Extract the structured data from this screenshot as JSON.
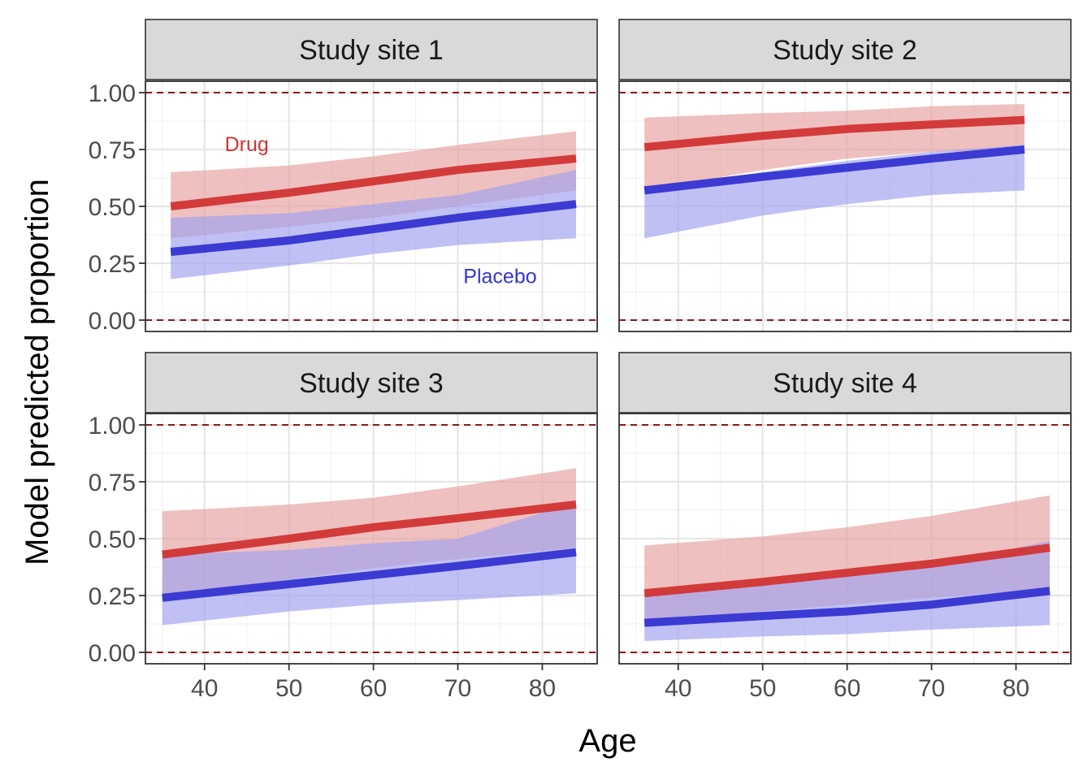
{
  "chart_data": {
    "type": "line",
    "xlabel": "Age",
    "ylabel": "Model predicted proportion",
    "xlim": [
      33,
      86.5
    ],
    "ylim": [
      -0.05,
      1.05
    ],
    "x_ticks": [
      40,
      50,
      60,
      70,
      80
    ],
    "x_tick_labels": [
      "40",
      "50",
      "60",
      "70",
      "80"
    ],
    "y_ticks": [
      0,
      0.25,
      0.5,
      0.75,
      1.0
    ],
    "y_tick_labels": [
      "0.00",
      "0.25",
      "0.50",
      "0.75",
      "1.00"
    ],
    "reference_lines": [
      0,
      1
    ],
    "grid": true,
    "colors": {
      "drug_line": "#d13434",
      "drug_band": "#e8a2a2",
      "placebo_line": "#3434d1",
      "placebo_band": "#a2a2ef",
      "reference": "#8b1a1a",
      "strip_bg": "#d9d9d9"
    },
    "annotations": [
      {
        "panel": 0,
        "text": "Drug",
        "x": 45,
        "y": 0.775,
        "color": "#d13434"
      },
      {
        "panel": 0,
        "text": "Placebo",
        "x": 75,
        "y": 0.195,
        "color": "#3434d1"
      }
    ],
    "panels": [
      {
        "title": "Study site 1",
        "series": [
          {
            "group": "Drug",
            "x": [
              36,
              50,
              60,
              70,
              84
            ],
            "y": [
              0.5,
              0.56,
              0.61,
              0.66,
              0.71
            ],
            "lower": [
              0.36,
              0.41,
              0.45,
              0.5,
              0.57
            ],
            "upper": [
              0.65,
              0.68,
              0.72,
              0.77,
              0.83
            ]
          },
          {
            "group": "Placebo",
            "x": [
              36,
              50,
              60,
              70,
              84
            ],
            "y": [
              0.3,
              0.35,
              0.4,
              0.45,
              0.51
            ],
            "lower": [
              0.18,
              0.24,
              0.29,
              0.33,
              0.36
            ],
            "upper": [
              0.45,
              0.47,
              0.51,
              0.55,
              0.66
            ]
          }
        ]
      },
      {
        "title": "Study site 2",
        "series": [
          {
            "group": "Drug",
            "x": [
              36,
              50,
              60,
              70,
              81
            ],
            "y": [
              0.76,
              0.81,
              0.84,
              0.86,
              0.88
            ],
            "lower": [
              0.57,
              0.66,
              0.71,
              0.74,
              0.75
            ],
            "upper": [
              0.89,
              0.91,
              0.92,
              0.94,
              0.95
            ]
          },
          {
            "group": "Placebo",
            "x": [
              36,
              50,
              60,
              70,
              81
            ],
            "y": [
              0.57,
              0.63,
              0.67,
              0.71,
              0.75
            ],
            "lower": [
              0.36,
              0.46,
              0.51,
              0.55,
              0.57
            ],
            "upper": [
              0.58,
              0.65,
              0.7,
              0.74,
              0.77
            ]
          }
        ]
      },
      {
        "title": "Study site 3",
        "series": [
          {
            "group": "Drug",
            "x": [
              35,
              50,
              60,
              70,
              84
            ],
            "y": [
              0.43,
              0.5,
              0.55,
              0.59,
              0.65
            ],
            "lower": [
              0.24,
              0.32,
              0.37,
              0.41,
              0.46
            ],
            "upper": [
              0.62,
              0.65,
              0.68,
              0.73,
              0.81
            ]
          },
          {
            "group": "Placebo",
            "x": [
              35,
              50,
              60,
              70,
              84
            ],
            "y": [
              0.24,
              0.3,
              0.34,
              0.38,
              0.44
            ],
            "lower": [
              0.12,
              0.18,
              0.21,
              0.23,
              0.26
            ],
            "upper": [
              0.43,
              0.45,
              0.48,
              0.5,
              0.66
            ]
          }
        ]
      },
      {
        "title": "Study site 4",
        "series": [
          {
            "group": "Drug",
            "x": [
              36,
              50,
              60,
              70,
              84
            ],
            "y": [
              0.26,
              0.31,
              0.35,
              0.39,
              0.46
            ],
            "lower": [
              0.12,
              0.18,
              0.21,
              0.24,
              0.28
            ],
            "upper": [
              0.47,
              0.51,
              0.55,
              0.6,
              0.69
            ]
          },
          {
            "group": "Placebo",
            "x": [
              36,
              50,
              60,
              70,
              84
            ],
            "y": [
              0.13,
              0.16,
              0.18,
              0.21,
              0.27
            ],
            "lower": [
              0.05,
              0.07,
              0.08,
              0.1,
              0.12
            ],
            "upper": [
              0.26,
              0.3,
              0.34,
              0.38,
              0.49
            ]
          }
        ]
      }
    ]
  }
}
